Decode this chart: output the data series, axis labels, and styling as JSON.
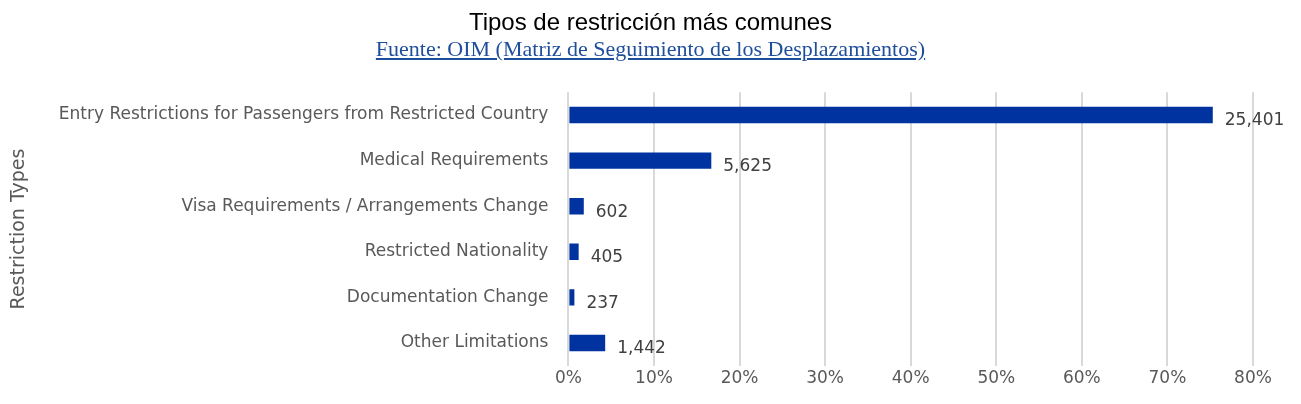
{
  "chart_data": {
    "type": "bar",
    "orientation": "horizontal",
    "title": "Tipos de restricción más comunes",
    "subtitle": "Fuente: OIM (Matriz de Seguimiento de los Desplazamientos)",
    "ylabel": "Restriction Types",
    "categories": [
      "Entry Restrictions for Passengers from Restricted Country",
      "Medical Requirements",
      "Visa Requirements / Arrangements Change",
      "Restricted Nationality",
      "Documentation Change",
      "Other Limitations"
    ],
    "values": [
      75.3,
      16.7,
      1.8,
      1.2,
      0.7,
      4.3
    ],
    "annotations": [
      {
        "text": "25,401",
        "x": 75.3,
        "y": "Entry Restrictions for Passengers from Restricted Country"
      },
      {
        "text": "5,625",
        "x": 16.7,
        "y": "Medical Requirements"
      },
      {
        "text": "602",
        "x": 1.8,
        "y": "Visa Requirements / Arrangements Change"
      },
      {
        "text": "405",
        "x": 1.2,
        "y": "Restricted Nationality"
      },
      {
        "text": "237",
        "x": 0.7,
        "y": "Documentation Change"
      },
      {
        "text": "1,442",
        "x": 4.3,
        "y": "Other Limitations"
      }
    ],
    "color": "#0033a0",
    "xlim": [
      0,
      80
    ],
    "xticks": [
      {
        "value": 0,
        "label": "0%"
      },
      {
        "value": 10,
        "label": "10%"
      },
      {
        "value": 20,
        "label": "20%"
      },
      {
        "value": 30,
        "label": "30%"
      },
      {
        "value": 40,
        "label": "40%"
      },
      {
        "value": 50,
        "label": "50%"
      },
      {
        "value": 60,
        "label": "60%"
      },
      {
        "value": 70,
        "label": "70%"
      },
      {
        "value": 80,
        "label": "80%"
      }
    ],
    "grid": "x",
    "legend": false
  }
}
